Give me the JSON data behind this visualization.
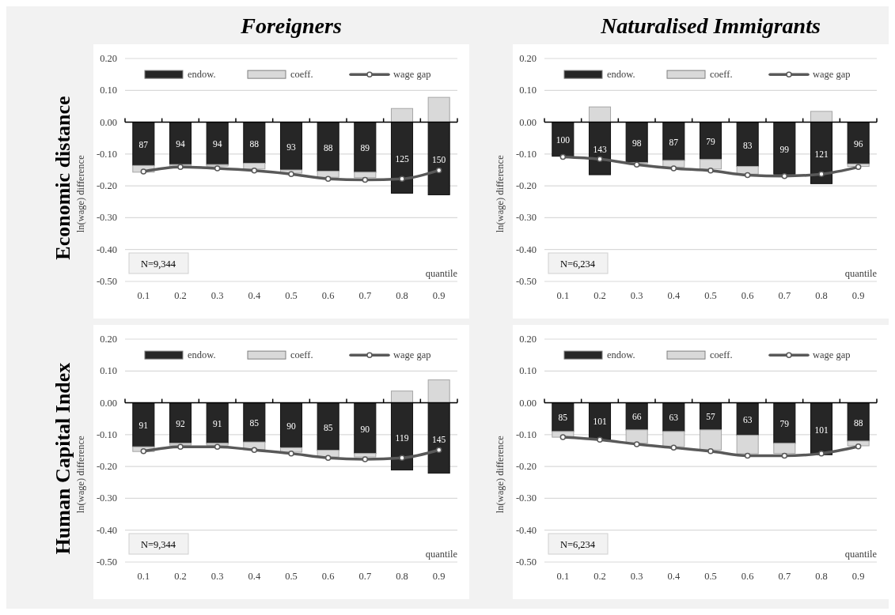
{
  "chart_data": [
    {
      "type": "bar",
      "title": "Foreigners",
      "subtitle": "Economic distance",
      "ylabel": "ln(wage) difference",
      "xlabel": "quantile",
      "categories": [
        "0.1",
        "0.2",
        "0.3",
        "0.4",
        "0.5",
        "0.6",
        "0.7",
        "0.8",
        "0.9"
      ],
      "stacked": true,
      "grid": "y",
      "legend": "top",
      "marker": "circle",
      "line_style": "solid",
      "annotations": [
        "N=9,344",
        "87",
        "94",
        "94",
        "88",
        "93",
        "88",
        "89",
        "125",
        "150"
      ],
      "ylim": [
        -0.5,
        0.2
      ],
      "yticks": [
        {
          "value": -0.5,
          "label": "-0.50"
        },
        {
          "value": -0.4,
          "label": "-0.40"
        },
        {
          "value": -0.3,
          "label": "-0.30"
        },
        {
          "value": -0.2,
          "label": "-0.20"
        },
        {
          "value": -0.1,
          "label": "-0.10"
        },
        {
          "value": 0,
          "label": "0.00"
        },
        {
          "value": 0.1,
          "label": "0.10"
        },
        {
          "value": 0.2,
          "label": "0.20"
        }
      ],
      "series": [
        {
          "name": "endow.",
          "type": "bar",
          "color": "#262626",
          "values": [
            -0.136,
            -0.133,
            -0.133,
            -0.129,
            -0.15,
            -0.154,
            -0.157,
            -0.223,
            -0.228
          ]
        },
        {
          "name": "coeff.",
          "type": "bar",
          "color": "#d9d9d9",
          "values": [
            -0.021,
            -0.005,
            -0.005,
            -0.018,
            -0.01,
            -0.019,
            -0.017,
            0.043,
            0.078
          ]
        },
        {
          "name": "wage gap",
          "type": "line",
          "color": "#595959",
          "values": [
            -0.155,
            -0.141,
            -0.145,
            -0.152,
            -0.163,
            -0.178,
            -0.181,
            -0.178,
            -0.151
          ]
        }
      ]
    },
    {
      "type": "bar",
      "title": "Naturalised Immigrants",
      "ylabel": "ln(wage) difference",
      "xlabel": "quantile",
      "categories": [
        "0.1",
        "0.2",
        "0.3",
        "0.4",
        "0.5",
        "0.6",
        "0.7",
        "0.8",
        "0.9"
      ],
      "stacked": true,
      "grid": "y",
      "legend": "top",
      "marker": "circle",
      "line_style": "solid",
      "annotations": [
        "N=6,234",
        "100",
        "143",
        "98",
        "87",
        "79",
        "83",
        "99",
        "121",
        "96"
      ],
      "ylim": [
        -0.5,
        0.2
      ],
      "yticks": [
        {
          "value": -0.5,
          "label": "-0.50"
        },
        {
          "value": -0.4,
          "label": "-0.40"
        },
        {
          "value": -0.3,
          "label": "-0.30"
        },
        {
          "value": -0.2,
          "label": "-0.20"
        },
        {
          "value": -0.1,
          "label": "-0.10"
        },
        {
          "value": 0,
          "label": "0.00"
        },
        {
          "value": 0.1,
          "label": "0.10"
        },
        {
          "value": 0.2,
          "label": "0.20"
        }
      ],
      "series": [
        {
          "name": "endow.",
          "type": "bar",
          "color": "#262626",
          "values": [
            -0.107,
            -0.165,
            -0.127,
            -0.12,
            -0.117,
            -0.139,
            -0.163,
            -0.193,
            -0.131
          ]
        },
        {
          "name": "coeff.",
          "type": "bar",
          "color": "#d9d9d9",
          "values": [
            null,
            0.048,
            -0.003,
            -0.021,
            -0.03,
            -0.024,
            null,
            0.034,
            -0.008
          ]
        },
        {
          "name": "wage gap",
          "type": "line",
          "color": "#595959",
          "values": [
            -0.109,
            -0.116,
            -0.133,
            -0.145,
            -0.152,
            -0.166,
            -0.169,
            -0.163,
            -0.141
          ]
        }
      ]
    },
    {
      "type": "bar",
      "subtitle": "Human Capital Index",
      "ylabel": "ln(wage) difference",
      "xlabel": "quantile",
      "categories": [
        "0.1",
        "0.2",
        "0.3",
        "0.4",
        "0.5",
        "0.6",
        "0.7",
        "0.8",
        "0.9"
      ],
      "stacked": true,
      "grid": "y",
      "legend": "top",
      "marker": "circle",
      "line_style": "solid",
      "annotations": [
        "N=9,344",
        "91",
        "92",
        "91",
        "85",
        "90",
        "85",
        "90",
        "119",
        "145"
      ],
      "ylim": [
        -0.5,
        0.2
      ],
      "yticks": [
        {
          "value": -0.5,
          "label": "-0.50"
        },
        {
          "value": -0.4,
          "label": "-0.40"
        },
        {
          "value": -0.3,
          "label": "-0.30"
        },
        {
          "value": -0.2,
          "label": "-0.20"
        },
        {
          "value": -0.1,
          "label": "-0.10"
        },
        {
          "value": 0,
          "label": "0.00"
        },
        {
          "value": 0.1,
          "label": "0.10"
        },
        {
          "value": 0.2,
          "label": "0.20"
        }
      ],
      "series": [
        {
          "name": "endow.",
          "type": "bar",
          "color": "#262626",
          "values": [
            -0.138,
            -0.127,
            -0.127,
            -0.123,
            -0.141,
            -0.149,
            -0.159,
            -0.211,
            -0.221
          ]
        },
        {
          "name": "coeff.",
          "type": "bar",
          "color": "#d9d9d9",
          "values": [
            -0.015,
            -0.006,
            -0.006,
            -0.024,
            -0.014,
            -0.021,
            -0.011,
            0.037,
            0.072
          ]
        },
        {
          "name": "wage gap",
          "type": "line",
          "color": "#595959",
          "values": [
            -0.152,
            -0.138,
            -0.138,
            -0.148,
            -0.159,
            -0.173,
            -0.177,
            -0.173,
            -0.148
          ]
        }
      ]
    },
    {
      "type": "bar",
      "ylabel": "ln(wage) difference",
      "xlabel": "quantile",
      "categories": [
        "0.1",
        "0.2",
        "0.3",
        "0.4",
        "0.5",
        "0.6",
        "0.7",
        "0.8",
        "0.9"
      ],
      "stacked": true,
      "grid": "y",
      "legend": "top",
      "marker": "circle",
      "line_style": "solid",
      "annotations": [
        "N=6,234",
        "85",
        "101",
        "66",
        "63",
        "57",
        "63",
        "79",
        "101",
        "88"
      ],
      "ylim": [
        -0.5,
        0.2
      ],
      "yticks": [
        {
          "value": -0.5,
          "label": "-0.50"
        },
        {
          "value": -0.4,
          "label": "-0.40"
        },
        {
          "value": -0.3,
          "label": "-0.30"
        },
        {
          "value": -0.2,
          "label": "-0.20"
        },
        {
          "value": -0.1,
          "label": "-0.10"
        },
        {
          "value": 0,
          "label": "0.00"
        },
        {
          "value": 0.1,
          "label": "0.10"
        },
        {
          "value": 0.2,
          "label": "0.20"
        }
      ],
      "series": [
        {
          "name": "endow.",
          "type": "bar",
          "color": "#262626",
          "values": [
            -0.09,
            -0.114,
            -0.085,
            -0.09,
            -0.085,
            -0.102,
            -0.127,
            -0.163,
            -0.12
          ]
        },
        {
          "name": "coeff.",
          "type": "bar",
          "color": "#d9d9d9",
          "values": [
            -0.018,
            null,
            -0.042,
            -0.048,
            -0.063,
            -0.058,
            -0.032,
            null,
            -0.015
          ]
        },
        {
          "name": "wage gap",
          "type": "line",
          "color": "#595959",
          "values": [
            -0.108,
            -0.116,
            -0.13,
            -0.141,
            -0.152,
            -0.166,
            -0.166,
            -0.159,
            -0.137
          ]
        }
      ]
    }
  ]
}
